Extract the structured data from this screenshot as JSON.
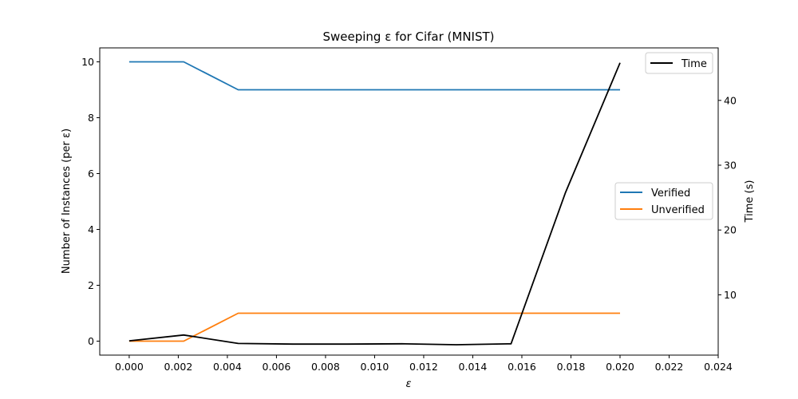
{
  "chart_data": {
    "type": "line",
    "title": "Sweeping ε for Cifar (MNIST)",
    "xlabel": "ε",
    "ylabel_left": "Number of Instances (per ε)",
    "ylabel_right": "Time (s)",
    "xlim": [
      -0.0012,
      0.024
    ],
    "xticks": [
      0.0,
      0.002,
      0.004,
      0.006,
      0.008,
      0.01,
      0.012,
      0.014,
      0.016,
      0.018,
      0.02,
      0.022,
      0.024
    ],
    "xtick_labels": [
      "0.000",
      "0.002",
      "0.004",
      "0.006",
      "0.008",
      "0.010",
      "0.012",
      "0.014",
      "0.016",
      "0.018",
      "0.020",
      "0.022",
      "0.024"
    ],
    "ylim_left": [
      -0.5,
      10.5
    ],
    "yticks_left": [
      0,
      2,
      4,
      6,
      8,
      10
    ],
    "ytick_labels_left": [
      "0",
      "2",
      "4",
      "6",
      "8",
      "10"
    ],
    "ylim_right": [
      0.7,
      48.1
    ],
    "yticks_right": [
      10,
      20,
      30,
      40
    ],
    "ytick_labels_right": [
      "10",
      "20",
      "30",
      "40"
    ],
    "grid": false,
    "x": [
      0.0,
      0.00222,
      0.00444,
      0.00667,
      0.00889,
      0.01111,
      0.01333,
      0.01556,
      0.01778,
      0.02
    ],
    "series": [
      {
        "name": "Verified",
        "axis": "left",
        "color": "#1f77b4",
        "values": [
          10,
          10,
          9,
          9,
          9,
          9,
          9,
          9,
          9,
          9
        ]
      },
      {
        "name": "Unverified",
        "axis": "left",
        "color": "#ff7f0e",
        "values": [
          0,
          0,
          1,
          1,
          1,
          1,
          1,
          1,
          1,
          1
        ]
      },
      {
        "name": "Time",
        "axis": "right",
        "color": "#000000",
        "values": [
          2.9,
          3.8,
          2.5,
          2.4,
          2.4,
          2.45,
          2.3,
          2.45,
          25.8,
          45.8
        ]
      }
    ],
    "legend_right_axis": {
      "placement": "upper right",
      "entries": [
        "Time"
      ]
    },
    "legend_left_axis": {
      "placement": "center right",
      "entries": [
        "Verified",
        "Unverified"
      ]
    }
  }
}
